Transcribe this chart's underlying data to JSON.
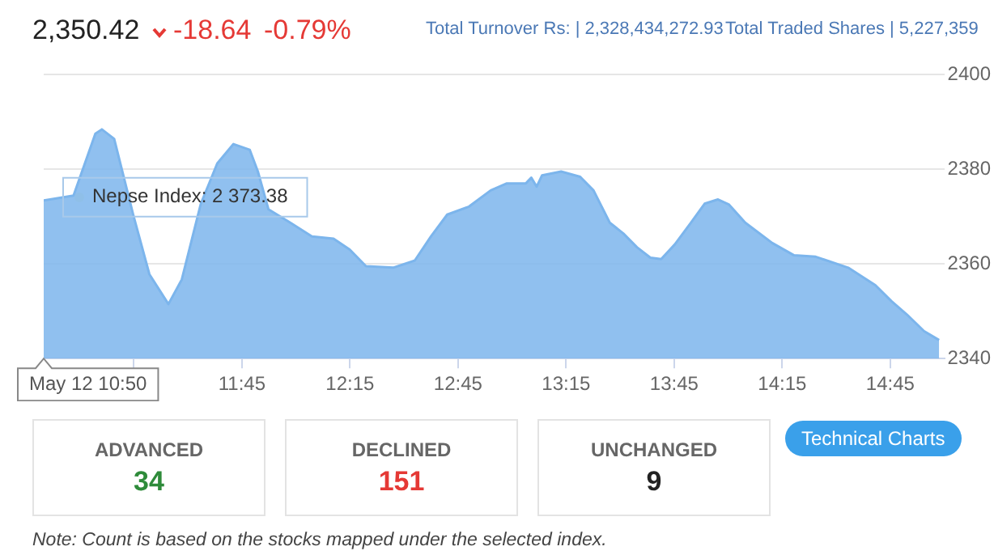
{
  "chart_data": {
    "type": "area",
    "x": [
      10.833,
      10.971,
      11.072,
      11.102,
      11.159,
      11.247,
      11.322,
      11.41,
      11.472,
      11.56,
      11.636,
      11.711,
      11.786,
      11.824,
      11.873,
      11.974,
      12.074,
      12.174,
      12.249,
      12.324,
      12.45,
      12.55,
      12.625,
      12.7,
      12.801,
      12.901,
      12.976,
      13.064,
      13.089,
      13.114,
      13.139,
      13.227,
      13.315,
      13.377,
      13.452,
      13.515,
      13.578,
      13.64,
      13.69,
      13.753,
      13.828,
      13.891,
      13.953,
      14.004,
      14.079,
      14.204,
      14.305,
      14.405,
      14.555,
      14.681,
      14.756,
      14.827,
      14.906,
      14.976
    ],
    "series": [
      {
        "color": "#7cb5ec",
        "values": [
          2373.38,
          2374.4,
          2387.5,
          2388.4,
          2386.4,
          2370.4,
          2357.8,
          2351.5,
          2356.7,
          2372.7,
          2381.2,
          2385.3,
          2384.1,
          2379.5,
          2371.5,
          2368.7,
          2365.8,
          2365.3,
          2363,
          2359.5,
          2359.2,
          2360.7,
          2365.8,
          2370.4,
          2372.1,
          2375.5,
          2377,
          2377,
          2378.2,
          2376.3,
          2378.7,
          2379.5,
          2378.4,
          2375.5,
          2368.7,
          2366.4,
          2363.5,
          2361.3,
          2361,
          2364.1,
          2368.7,
          2372.7,
          2373.6,
          2372.5,
          2368.7,
          2364.4,
          2361.8,
          2361.5,
          2359.2,
          2355.5,
          2352.1,
          2349.3,
          2345.8,
          2343.9
        ]
      }
    ],
    "xlim": [
      10.833,
      15.0
    ],
    "xticks": [
      {
        "value": 11.25,
        "label": null
      },
      {
        "value": 11.75,
        "label": "11:45"
      },
      {
        "value": 12.25,
        "label": "12:15"
      },
      {
        "value": 12.75,
        "label": "12:45"
      },
      {
        "value": 13.25,
        "label": "13:15"
      },
      {
        "value": 13.75,
        "label": "13:45"
      },
      {
        "value": 14.25,
        "label": "14:15"
      },
      {
        "value": 14.75,
        "label": "14:45"
      }
    ],
    "ylim": [
      2340,
      2400
    ],
    "yticks": [
      2340,
      2360,
      2380,
      2400
    ],
    "grid": "y",
    "legend": false,
    "annotations": [
      "2,350.42",
      "-18.64",
      "-0.79%",
      "Total Turnover Rs: | 2,328,434,272.93",
      "Total Traded Shares | 5,227,359",
      "ADVANCED",
      "34",
      "DECLINED",
      "151",
      "UNCHANGED",
      "9",
      "Technical Charts",
      "Note: Count is based on the stocks mapped under the selected index.",
      "May 12 10:50",
      {
        "text": "Nepse Index: 2 373.38",
        "x": 10.833,
        "y": 2373.38
      }
    ]
  }
}
